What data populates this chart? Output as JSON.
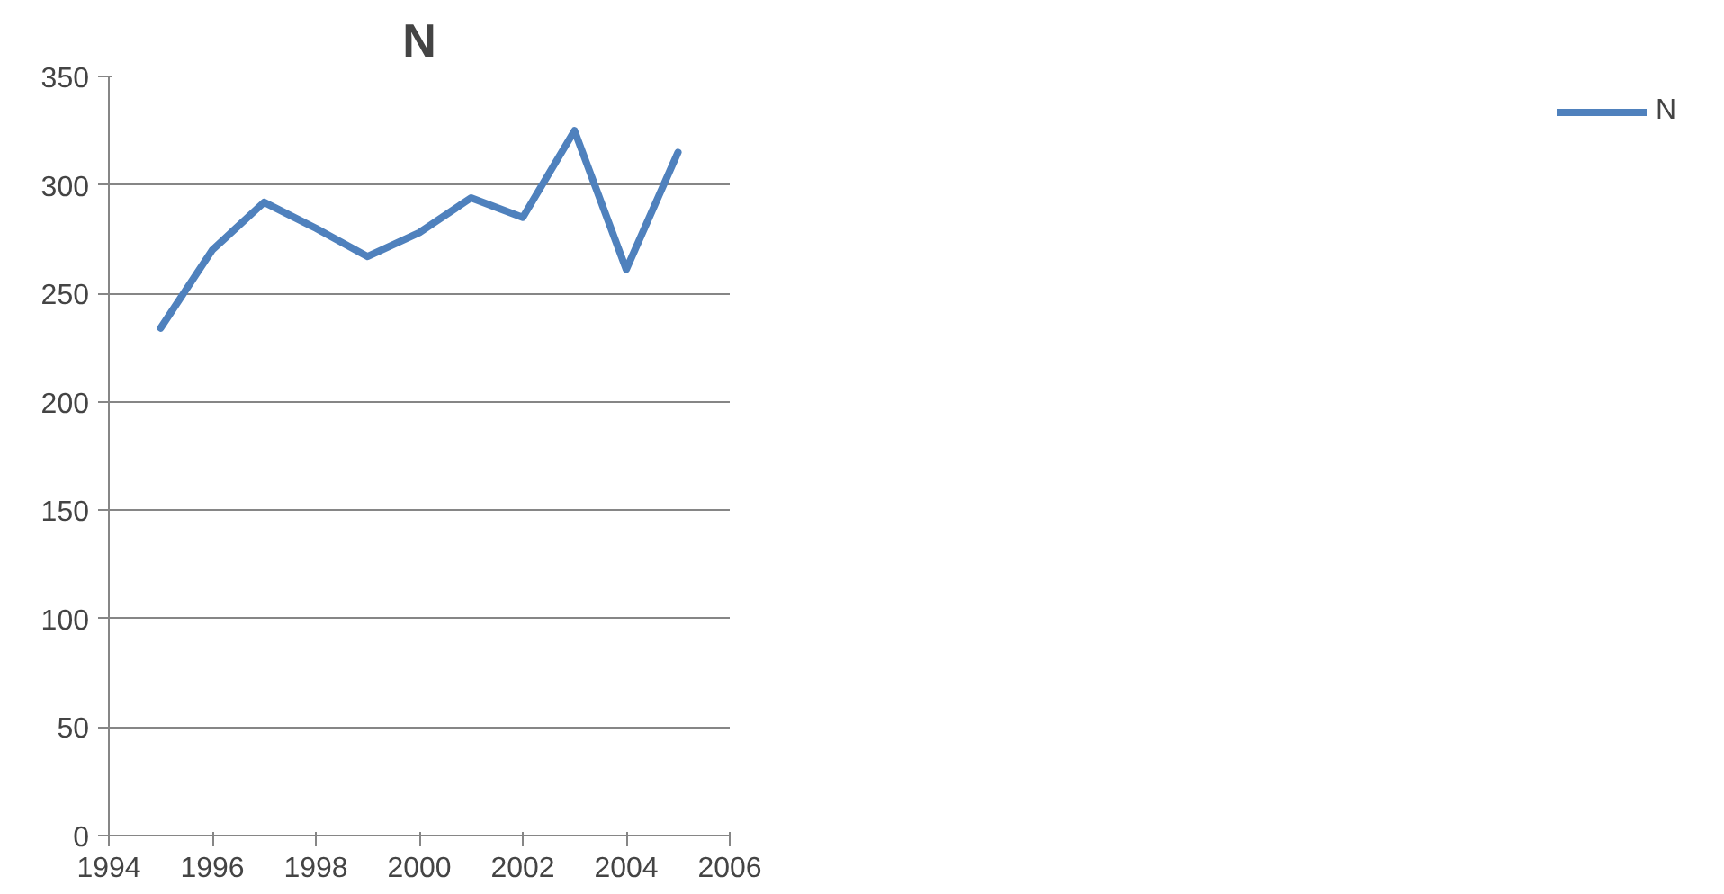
{
  "chart_data": {
    "type": "line",
    "title": "N",
    "x": [
      1995,
      1996,
      1997,
      1998,
      1999,
      2000,
      2001,
      2002,
      2003,
      2004,
      2005
    ],
    "series": [
      {
        "name": "N",
        "color": "#4f81bd",
        "values": [
          234,
          270,
          292,
          280,
          267,
          278,
          294,
          285,
          325,
          261,
          315
        ]
      }
    ],
    "xlim": [
      1994,
      2006
    ],
    "xticks": [
      1994,
      1996,
      1998,
      2000,
      2002,
      2004,
      2006
    ],
    "ylim": [
      0,
      350
    ],
    "yticks": [
      0,
      50,
      100,
      150,
      200,
      250,
      300,
      350
    ],
    "grid": "y",
    "legend": "right",
    "marker": "none",
    "line_style": "solid"
  }
}
